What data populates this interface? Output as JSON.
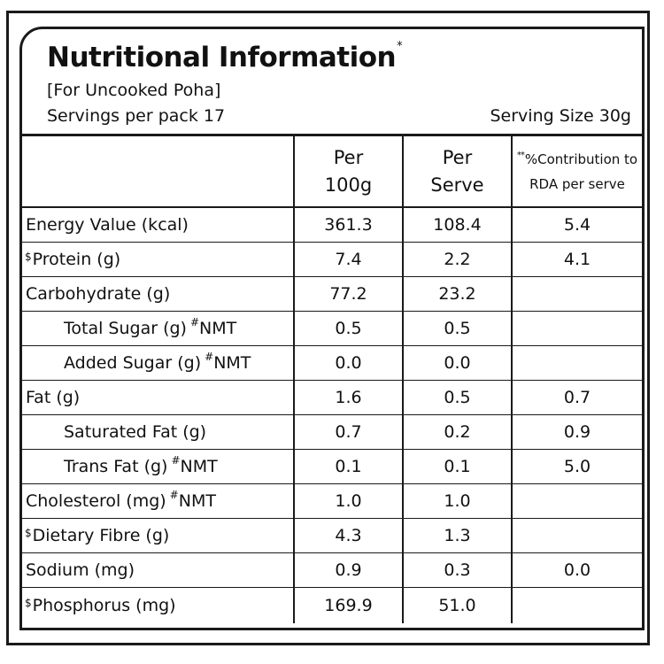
{
  "header": {
    "title": "Nutritional Information",
    "title_mark": "*",
    "subtitle": "[For Uncooked Poha]",
    "servings": "Servings per pack 17",
    "serving_size": "Serving Size 30g"
  },
  "table": {
    "columns": [
      {
        "line1": "Per",
        "line2": "100g"
      },
      {
        "line1": "Per",
        "line2": "Serve"
      },
      {
        "mark": "**",
        "line1": "%Contribution to",
        "line2": "RDA per serve"
      }
    ],
    "rows": [
      {
        "mark": "",
        "label": "Energy Value (kcal)",
        "after_mark": "",
        "after": "",
        "per100": "361.3",
        "perServe": "108.4",
        "rda": "5.4"
      },
      {
        "mark": "$",
        "label": "Protein (g)",
        "after_mark": "",
        "after": "",
        "per100": "7.4",
        "perServe": "2.2",
        "rda": "4.1"
      },
      {
        "mark": "",
        "label": "Carbohydrate (g)",
        "after_mark": "",
        "after": "",
        "per100": "77.2",
        "perServe": "23.2",
        "rda": ""
      },
      {
        "mark": "",
        "label": "Total Sugar (g)",
        "after_mark": "#",
        "after": "NMT",
        "per100": "0.5",
        "perServe": "0.5",
        "rda": ""
      },
      {
        "mark": "",
        "label": "Added Sugar (g)",
        "after_mark": "#",
        "after": "NMT",
        "per100": "0.0",
        "perServe": "0.0",
        "rda": ""
      },
      {
        "mark": "",
        "label": "Fat (g)",
        "after_mark": "",
        "after": "",
        "per100": "1.6",
        "perServe": "0.5",
        "rda": "0.7"
      },
      {
        "mark": "",
        "label": "Saturated Fat (g)",
        "after_mark": "",
        "after": "",
        "per100": "0.7",
        "perServe": "0.2",
        "rda": "0.9"
      },
      {
        "mark": "",
        "label": "Trans Fat (g)",
        "after_mark": "#",
        "after": "NMT",
        "per100": "0.1",
        "perServe": "0.1",
        "rda": "5.0"
      },
      {
        "mark": "",
        "label": "Cholesterol (mg)",
        "after_mark": "#",
        "after": "NMT",
        "per100": "1.0",
        "perServe": "1.0",
        "rda": ""
      },
      {
        "mark": "$",
        "label": "Dietary Fibre (g)",
        "after_mark": "",
        "after": "",
        "per100": "4.3",
        "perServe": "1.3",
        "rda": ""
      },
      {
        "mark": "",
        "label": "Sodium (mg)",
        "after_mark": "",
        "after": "",
        "per100": "0.9",
        "perServe": "0.3",
        "rda": "0.0"
      },
      {
        "mark": "$",
        "label": "Phosphorus (mg)",
        "after_mark": "",
        "after": "",
        "per100": "169.9",
        "perServe": "51.0",
        "rda": ""
      }
    ]
  },
  "colors": {
    "ink": "#1a1a1a",
    "background": "#ffffff"
  }
}
